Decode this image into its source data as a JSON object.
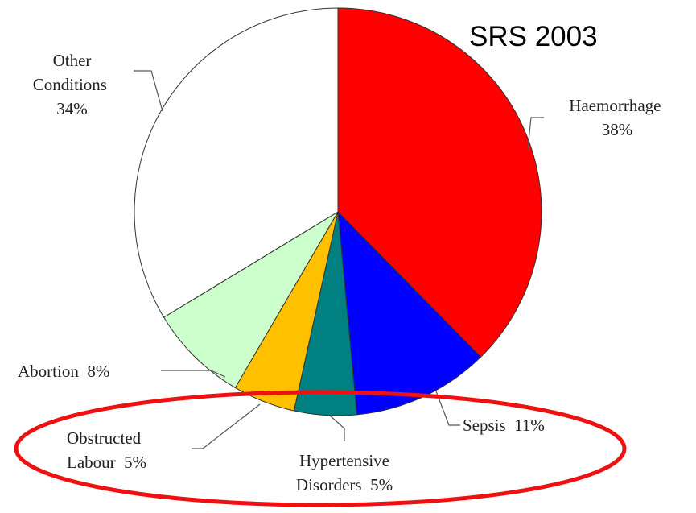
{
  "chart_data": {
    "type": "pie",
    "title": "SRS 2003",
    "categories": [
      "Haemorrhage",
      "Sepsis",
      "Hypertensive Disorders",
      "Obstructed Labour",
      "Abortion",
      "Other Conditions"
    ],
    "values": [
      38,
      11,
      5,
      5,
      8,
      34
    ],
    "value_labels": [
      "38%",
      "11%",
      "5%",
      "5%",
      "8%",
      "34%"
    ],
    "colors": [
      "#ff0000",
      "#0000ff",
      "#008080",
      "#ffc000",
      "#ccffcc",
      "#ffffff"
    ]
  }
}
